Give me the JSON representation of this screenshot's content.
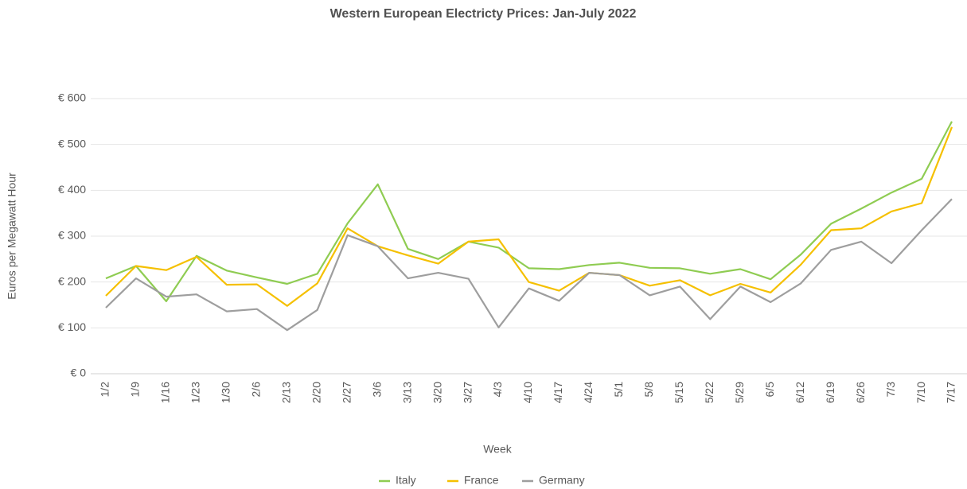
{
  "chart_data": {
    "type": "line",
    "title": "Western European Electricty Prices:  Jan-July 2022",
    "x_label": "Week",
    "y_label": "Euros per Megawatt Hour",
    "categories": [
      "1/2",
      "1/9",
      "1/16",
      "1/23",
      "1/30",
      "2/6",
      "2/13",
      "2/20",
      "2/27",
      "3/6",
      "3/13",
      "3/20",
      "3/27",
      "4/3",
      "4/10",
      "4/17",
      "4/24",
      "5/1",
      "5/8",
      "5/15",
      "5/22",
      "5/29",
      "6/5",
      "6/12",
      "6/19",
      "6/26",
      "7/3",
      "7/10",
      "7/17"
    ],
    "series": [
      {
        "name": "Italy",
        "color": "#8fcc52",
        "values": [
          208,
          235,
          158,
          257,
          225,
          210,
          196,
          218,
          328,
          413,
          272,
          250,
          288,
          275,
          230,
          228,
          237,
          242,
          231,
          230,
          218,
          228,
          206,
          260,
          327,
          360,
          395,
          425,
          550
        ]
      },
      {
        "name": "France",
        "color": "#f5c000",
        "values": [
          170,
          235,
          226,
          255,
          194,
          195,
          148,
          197,
          317,
          278,
          258,
          240,
          288,
          293,
          200,
          181,
          220,
          215,
          192,
          204,
          171,
          196,
          177,
          238,
          313,
          317,
          354,
          372,
          538
        ]
      },
      {
        "name": "Germany",
        "color": "#9e9e9e",
        "values": [
          144,
          208,
          168,
          173,
          136,
          141,
          95,
          139,
          302,
          278,
          208,
          220,
          207,
          101,
          186,
          159,
          220,
          215,
          171,
          190,
          119,
          190,
          156,
          197,
          270,
          288,
          241,
          313,
          381
        ]
      }
    ],
    "ylim": [
      0,
      600
    ],
    "yticks": [
      {
        "value": 0,
        "label": "€ 0"
      },
      {
        "value": 100,
        "label": "€ 100"
      },
      {
        "value": 200,
        "label": "€ 200"
      },
      {
        "value": 300,
        "label": "€ 300"
      },
      {
        "value": 400,
        "label": "€ 400"
      },
      {
        "value": 500,
        "label": "€ 500"
      },
      {
        "value": 600,
        "label": "€ 600"
      }
    ],
    "grid": true,
    "legend": "bottom"
  }
}
